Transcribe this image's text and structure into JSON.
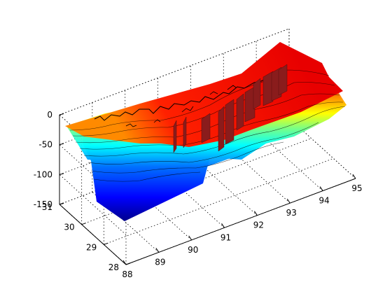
{
  "chart_data": {
    "type": "surface3d",
    "title": "",
    "xlabel": "",
    "ylabel": "",
    "zlabel": "",
    "x_ticks": [
      88,
      89,
      90,
      91,
      92,
      93,
      94,
      95
    ],
    "y_ticks": [
      28,
      29,
      30,
      31
    ],
    "z_ticks": [
      0,
      -50,
      -100,
      -150
    ],
    "x_range": [
      88,
      95
    ],
    "y_range": [
      28,
      31
    ],
    "z_range": [
      -150,
      0
    ],
    "grid": true,
    "colormap": "jet",
    "colormap_stops": [
      "#00008f",
      "#0000ff",
      "#00ffff",
      "#ffff00",
      "#ff0000",
      "#800000"
    ],
    "contour_color": "#000000",
    "coastline_color": "#000000",
    "fin_color": "#8a1c1c",
    "surface_depth_profile": [
      {
        "x": 89.0,
        "depth": -150
      },
      {
        "x": 90.0,
        "depth": -140
      },
      {
        "x": 91.0,
        "depth": -90
      },
      {
        "x": 92.0,
        "depth": -70
      },
      {
        "x": 93.0,
        "depth": -55
      },
      {
        "x": 94.0,
        "depth": -40
      },
      {
        "x": 95.0,
        "depth": -30
      }
    ]
  }
}
